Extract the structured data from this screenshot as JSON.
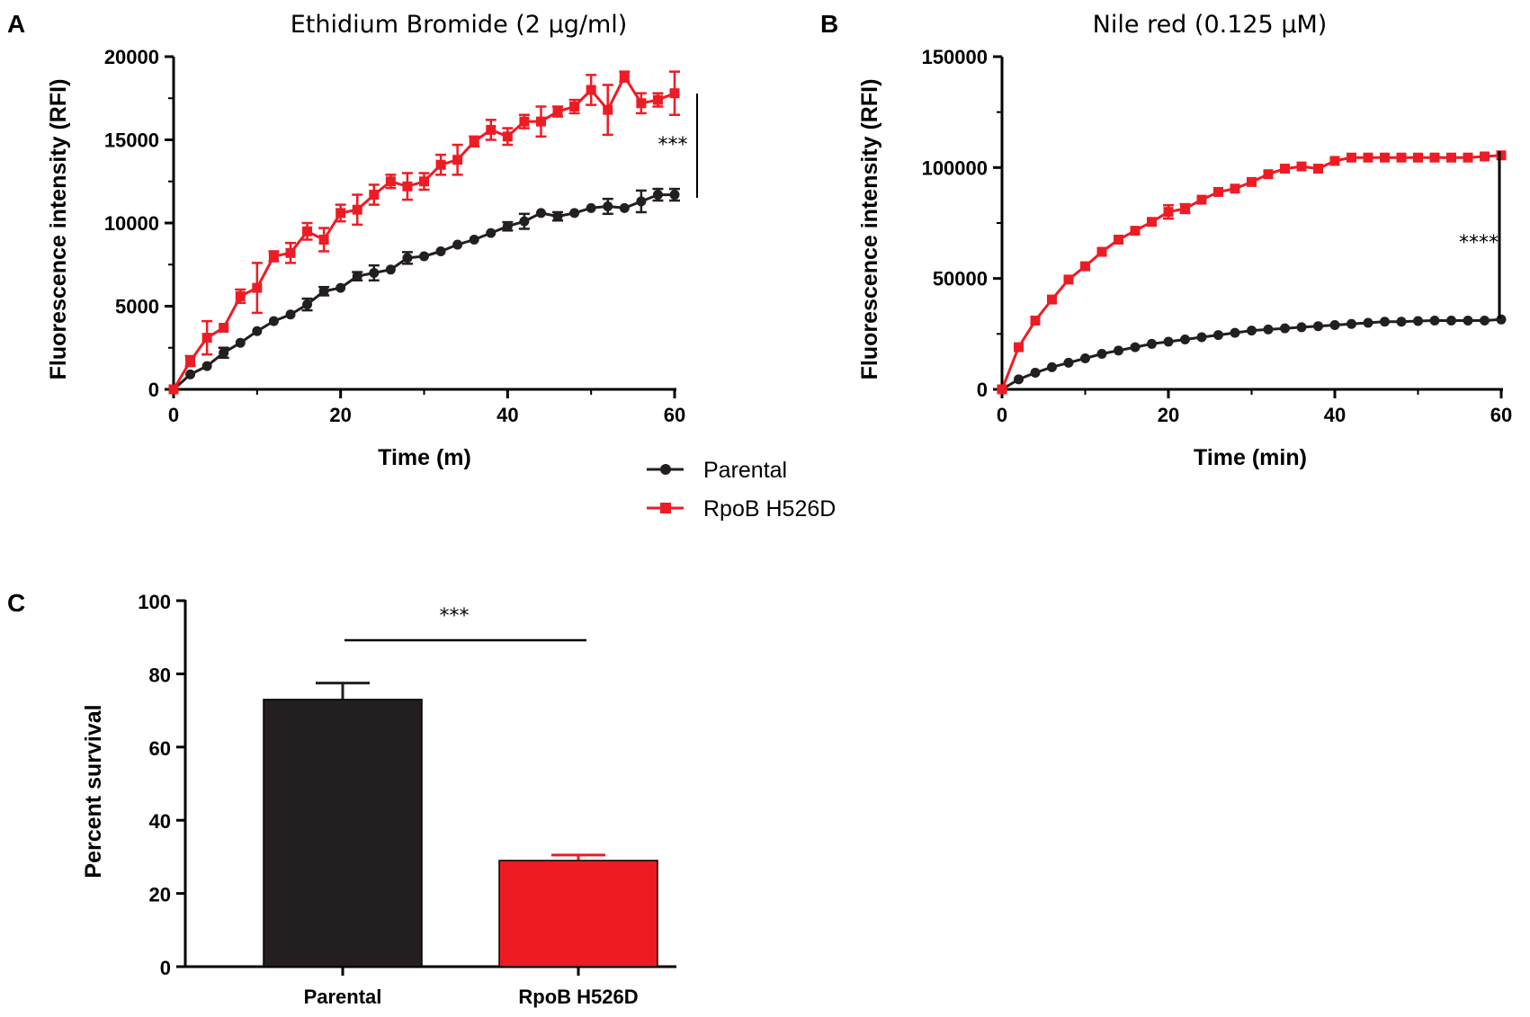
{
  "colors": {
    "parental": "#231f20",
    "mutant": "#ed1c24",
    "axis": "#000000"
  },
  "legend": {
    "items": [
      "Parental",
      "RpoB H526D"
    ]
  },
  "chart_data": [
    {
      "panel_label": "A",
      "type": "line",
      "title": "Ethidium Bromide (2 µg/ml)",
      "xlabel": "Time (m)",
      "ylabel": "Fluorescence intensity  (RFI)",
      "xlim": [
        0,
        60
      ],
      "ylim": [
        0,
        20000
      ],
      "xticks": [
        "0",
        "20",
        "40",
        "60"
      ],
      "yticks": [
        "0",
        "5000",
        "10000",
        "15000",
        "20000"
      ],
      "significance": "***",
      "series": [
        {
          "name": "Parental",
          "marker": "circle",
          "x": [
            0,
            2,
            4,
            6,
            8,
            10,
            12,
            14,
            16,
            18,
            20,
            22,
            24,
            26,
            28,
            30,
            32,
            34,
            36,
            38,
            40,
            42,
            44,
            46,
            48,
            50,
            52,
            54,
            56,
            58,
            60
          ],
          "y": [
            0,
            900,
            1400,
            2200,
            2800,
            3500,
            4100,
            4500,
            5100,
            5900,
            6100,
            6800,
            7000,
            7200,
            7900,
            8000,
            8300,
            8700,
            9000,
            9400,
            9800,
            10100,
            10600,
            10400,
            10600,
            10900,
            11000,
            10900,
            11300,
            11700,
            11700
          ],
          "err": [
            0,
            150,
            150,
            300,
            150,
            150,
            150,
            150,
            350,
            250,
            150,
            250,
            450,
            150,
            350,
            150,
            150,
            150,
            150,
            150,
            250,
            450,
            150,
            250,
            150,
            150,
            450,
            150,
            650,
            350,
            350
          ]
        },
        {
          "name": "RpoB H526D",
          "marker": "square",
          "x": [
            0,
            2,
            4,
            6,
            8,
            10,
            12,
            14,
            16,
            18,
            20,
            22,
            24,
            26,
            28,
            30,
            32,
            34,
            36,
            38,
            40,
            42,
            44,
            46,
            48,
            50,
            52,
            54,
            56,
            58,
            60
          ],
          "y": [
            0,
            1700,
            3100,
            3700,
            5600,
            6100,
            8000,
            8200,
            9500,
            9000,
            10600,
            10800,
            11700,
            12500,
            12200,
            12500,
            13500,
            13800,
            14900,
            15600,
            15200,
            16100,
            16100,
            16700,
            17000,
            18000,
            16800,
            18800,
            17200,
            17400,
            17800
          ],
          "err": [
            0,
            300,
            1000,
            200,
            400,
            1500,
            300,
            600,
            500,
            700,
            500,
            900,
            600,
            400,
            800,
            500,
            600,
            900,
            300,
            600,
            500,
            400,
            900,
            300,
            400,
            900,
            1500,
            300,
            600,
            400,
            1300
          ]
        }
      ]
    },
    {
      "panel_label": "B",
      "type": "line",
      "title": "Nile red (0.125 µM)",
      "xlabel": "Time (min)",
      "ylabel": "Fluorescence intensity  (RFI)",
      "xlim": [
        0,
        60
      ],
      "ylim": [
        0,
        150000
      ],
      "xticks": [
        "0",
        "20",
        "40",
        "60"
      ],
      "yticks": [
        "0",
        "50000",
        "100000",
        "150000"
      ],
      "significance": "****",
      "series": [
        {
          "name": "Parental",
          "marker": "circle",
          "x": [
            0,
            2,
            4,
            6,
            8,
            10,
            12,
            14,
            16,
            18,
            20,
            22,
            24,
            26,
            28,
            30,
            32,
            34,
            36,
            38,
            40,
            42,
            44,
            46,
            48,
            50,
            52,
            54,
            56,
            58,
            60
          ],
          "y": [
            0,
            4500,
            7500,
            10000,
            12000,
            14000,
            16000,
            17500,
            19000,
            20500,
            21500,
            22500,
            23500,
            24500,
            25500,
            26500,
            27000,
            27500,
            28000,
            28500,
            29000,
            29500,
            30000,
            30500,
            30500,
            30800,
            31000,
            31000,
            31000,
            31000,
            31500
          ],
          "err": [
            0,
            300,
            300,
            300,
            300,
            300,
            300,
            300,
            300,
            300,
            300,
            300,
            300,
            300,
            300,
            300,
            300,
            300,
            300,
            300,
            300,
            300,
            300,
            300,
            300,
            300,
            300,
            300,
            300,
            300,
            300
          ]
        },
        {
          "name": "RpoB H526D",
          "marker": "square",
          "x": [
            0,
            2,
            4,
            6,
            8,
            10,
            12,
            14,
            16,
            18,
            20,
            22,
            24,
            26,
            28,
            30,
            32,
            34,
            36,
            38,
            40,
            42,
            44,
            46,
            48,
            50,
            52,
            54,
            56,
            58,
            60
          ],
          "y": [
            0,
            19000,
            31000,
            40500,
            49500,
            55500,
            62000,
            67500,
            71500,
            75500,
            80000,
            81500,
            85500,
            89000,
            90500,
            93500,
            97000,
            99500,
            100500,
            99500,
            103000,
            104500,
            104500,
            104500,
            104500,
            104500,
            104500,
            104500,
            104500,
            105000,
            105500
          ],
          "err": [
            0,
            600,
            600,
            600,
            600,
            600,
            600,
            600,
            600,
            600,
            3000,
            2000,
            600,
            600,
            600,
            600,
            600,
            600,
            600,
            600,
            600,
            600,
            600,
            600,
            600,
            600,
            600,
            600,
            600,
            600,
            600
          ]
        }
      ]
    },
    {
      "panel_label": "C",
      "type": "bar",
      "title": "",
      "xlabel": "",
      "ylabel": "Percent survival",
      "ylim": [
        0,
        100
      ],
      "yticks": [
        "0",
        "20",
        "40",
        "60",
        "80",
        "100"
      ],
      "categories": [
        "Parental",
        "RpoB H526D"
      ],
      "values": [
        73,
        29
      ],
      "err": [
        4.5,
        1.5
      ],
      "significance": "***"
    }
  ]
}
